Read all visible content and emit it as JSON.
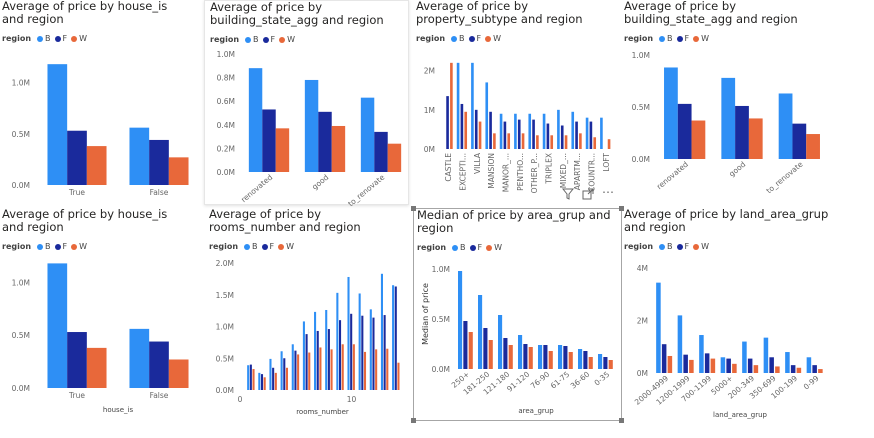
{
  "legend_title": "region",
  "colors": {
    "B": "#2e8ff5",
    "F": "#1a2a9c",
    "W": "#e8683a"
  },
  "icons": [
    "filter-icon",
    "focus-mode-icon",
    "more-options-icon"
  ],
  "chart_data": [
    {
      "id": "c1",
      "type": "bar",
      "title": "Average of price by house_is and region",
      "xlabel": "",
      "ylabel": "",
      "categories": [
        "True",
        "False"
      ],
      "series": [
        {
          "name": "B",
          "values": [
            1180000,
            560000
          ]
        },
        {
          "name": "F",
          "values": [
            530000,
            440000
          ]
        },
        {
          "name": "W",
          "values": [
            380000,
            270000
          ]
        }
      ],
      "ylim": [
        0,
        1250000
      ],
      "yticks": [
        0,
        500000,
        1000000
      ],
      "ytick_labels": [
        "0.0M",
        "0.5M",
        "1.0M"
      ],
      "legend": "top-left",
      "grid": false
    },
    {
      "id": "c2",
      "type": "bar",
      "title": "Average of price by building_state_agg and region",
      "xlabel": "",
      "ylabel": "",
      "categories": [
        "renovated",
        "good",
        "to_renovate"
      ],
      "series": [
        {
          "name": "B",
          "values": [
            880000,
            780000,
            630000
          ]
        },
        {
          "name": "F",
          "values": [
            530000,
            510000,
            340000
          ]
        },
        {
          "name": "W",
          "values": [
            370000,
            390000,
            240000
          ]
        }
      ],
      "ylim": [
        0,
        1000000
      ],
      "yticks": [
        0,
        200000,
        400000,
        600000,
        800000,
        1000000
      ],
      "ytick_labels": [
        "0.0M",
        "0.2M",
        "0.4M",
        "0.6M",
        "0.8M",
        "1.0M"
      ],
      "legend": "top-left",
      "grid": false
    },
    {
      "id": "c3",
      "type": "bar",
      "title": "Average of price by property_subtype and region",
      "xlabel": "",
      "ylabel": "",
      "categories": [
        "CASTLE",
        "EXCEPTI...",
        "VILLA",
        "MANSION",
        "MANOR_...",
        "PENTHO...",
        "OTHER_P...",
        "TRIPLEX",
        "MIXED_...",
        "APARTM...",
        "COUNTR...",
        "LOFT"
      ],
      "series": [
        {
          "name": "B",
          "values": [
            0,
            2200000,
            2200000,
            1700000,
            900000,
            900000,
            900000,
            900000,
            1000000,
            950000,
            800000,
            800000
          ]
        },
        {
          "name": "F",
          "values": [
            1350000,
            1150000,
            1000000,
            950000,
            700000,
            750000,
            750000,
            650000,
            600000,
            700000,
            700000,
            0
          ]
        },
        {
          "name": "W",
          "values": [
            2200000,
            950000,
            700000,
            400000,
            400000,
            400000,
            350000,
            350000,
            350000,
            400000,
            300000,
            250000
          ]
        }
      ],
      "ylim": [
        0,
        2400000
      ],
      "yticks": [
        0,
        1000000,
        2000000
      ],
      "ytick_labels": [
        "0M",
        "1M",
        "2M"
      ],
      "legend": "top-left",
      "grid": false
    },
    {
      "id": "c4",
      "type": "bar",
      "title": "Average of price by building_state_agg and region",
      "xlabel": "",
      "ylabel": "",
      "categories": [
        "renovated",
        "good",
        "to_renovate"
      ],
      "series": [
        {
          "name": "B",
          "values": [
            880000,
            780000,
            630000
          ]
        },
        {
          "name": "F",
          "values": [
            530000,
            510000,
            340000
          ]
        },
        {
          "name": "W",
          "values": [
            370000,
            390000,
            240000
          ]
        }
      ],
      "ylim": [
        0,
        1000000
      ],
      "yticks": [
        0,
        500000,
        1000000
      ],
      "ytick_labels": [
        "0.0M",
        "0.5M",
        "1.0M"
      ],
      "legend": "top-left",
      "grid": false
    },
    {
      "id": "c5",
      "type": "bar",
      "title": "Average of price by house_is and region",
      "xlabel": "house_is",
      "ylabel": "",
      "categories": [
        "True",
        "False"
      ],
      "series": [
        {
          "name": "B",
          "values": [
            1180000,
            560000
          ]
        },
        {
          "name": "F",
          "values": [
            530000,
            440000
          ]
        },
        {
          "name": "W",
          "values": [
            380000,
            270000
          ]
        }
      ],
      "ylim": [
        0,
        1250000
      ],
      "yticks": [
        0,
        500000,
        1000000
      ],
      "ytick_labels": [
        "0.0M",
        "0.5M",
        "1.0M"
      ],
      "legend": "top-left",
      "grid": false
    },
    {
      "id": "c6",
      "type": "bar",
      "title": "Average of price by rooms_number and region",
      "xlabel": "rooms_number",
      "ylabel": "",
      "x": [
        1,
        2,
        3,
        4,
        5,
        6,
        7,
        8,
        9,
        10,
        11,
        12,
        13,
        14
      ],
      "xlim": [
        0,
        14.8
      ],
      "xticks": [
        0,
        10
      ],
      "xtick_labels": [
        "0",
        "10"
      ],
      "series": [
        {
          "name": "B",
          "values": [
            390000,
            270000,
            490000,
            610000,
            720000,
            1080000,
            1230000,
            1260000,
            1530000,
            1780000,
            1520000,
            1270000,
            1830000,
            1650000
          ]
        },
        {
          "name": "F",
          "values": [
            400000,
            250000,
            350000,
            500000,
            620000,
            880000,
            930000,
            960000,
            1100000,
            1200000,
            1170000,
            1140000,
            1180000,
            1630000
          ]
        },
        {
          "name": "W",
          "values": [
            330000,
            200000,
            270000,
            350000,
            560000,
            590000,
            670000,
            640000,
            720000,
            720000,
            600000,
            640000,
            650000,
            430000
          ]
        }
      ],
      "ylim": [
        0,
        2000000
      ],
      "yticks": [
        0,
        500000,
        1000000,
        1500000,
        2000000
      ],
      "ytick_labels": [
        "0.0M",
        "0.5M",
        "1.0M",
        "1.5M",
        "2.0M"
      ],
      "legend": "top-left",
      "grid": false
    },
    {
      "id": "c7",
      "type": "bar",
      "title": "Median of price by area_grup and region",
      "xlabel": "area_grup",
      "ylabel": "Median of price",
      "categories": [
        "250+",
        "181-250",
        "121-180",
        "91-120",
        "76-90",
        "61-75",
        "36-60",
        "0-35"
      ],
      "series": [
        {
          "name": "B",
          "values": [
            980000,
            740000,
            540000,
            340000,
            240000,
            240000,
            200000,
            150000
          ]
        },
        {
          "name": "F",
          "values": [
            480000,
            410000,
            310000,
            250000,
            240000,
            230000,
            180000,
            120000
          ]
        },
        {
          "name": "W",
          "values": [
            370000,
            290000,
            240000,
            220000,
            180000,
            170000,
            120000,
            90000
          ]
        }
      ],
      "ylim": [
        0,
        1100000
      ],
      "yticks": [
        0,
        500000,
        1000000
      ],
      "ytick_labels": [
        "0.0M",
        "0.5M",
        "1.0M"
      ],
      "legend": "top-left",
      "grid": false
    },
    {
      "id": "c8",
      "type": "bar",
      "title": "Average of price by land_area_grup and region",
      "xlabel": "land_area_grup",
      "ylabel": "",
      "categories": [
        "2000-4999",
        "1200-1999",
        "700-1199",
        "5000+",
        "200-349",
        "350-699",
        "100-199",
        "0-99"
      ],
      "series": [
        {
          "name": "B",
          "values": [
            3450000,
            2200000,
            1450000,
            600000,
            1200000,
            1350000,
            800000,
            600000
          ]
        },
        {
          "name": "F",
          "values": [
            1100000,
            700000,
            750000,
            550000,
            550000,
            600000,
            300000,
            300000
          ]
        },
        {
          "name": "W",
          "values": [
            650000,
            500000,
            550000,
            350000,
            300000,
            250000,
            200000,
            150000
          ]
        }
      ],
      "ylim": [
        0,
        4200000
      ],
      "yticks": [
        0,
        2000000,
        4000000
      ],
      "ytick_labels": [
        "0M",
        "2M",
        "4M"
      ],
      "legend": "top-left",
      "grid": false
    }
  ]
}
